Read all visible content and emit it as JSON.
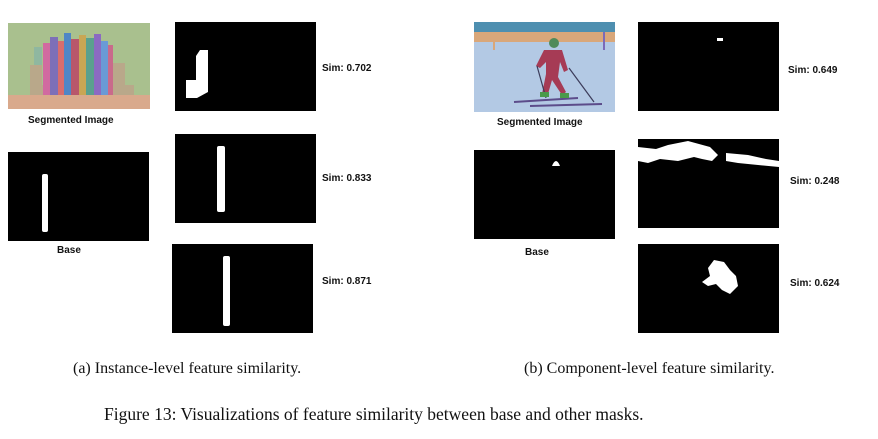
{
  "panel_a": {
    "segmented_image_label": "Segmented Image",
    "base_label": "Base",
    "sims": [
      "Sim: 0.702",
      "Sim: 0.833",
      "Sim: 0.871"
    ],
    "subcaption": "(a) Instance-level feature similarity."
  },
  "panel_b": {
    "segmented_image_label": "Segmented Image",
    "base_label": "Base",
    "sims": [
      "Sim: 0.649",
      "Sim: 0.248",
      "Sim: 0.624"
    ],
    "subcaption": "(b) Component-level feature similarity."
  },
  "figure_caption": "Figure 13: Visualizations of feature similarity between base and other masks.",
  "colors": {
    "mask_background": "#000000",
    "mask_foreground": "#ffffff",
    "text": "#111111"
  }
}
